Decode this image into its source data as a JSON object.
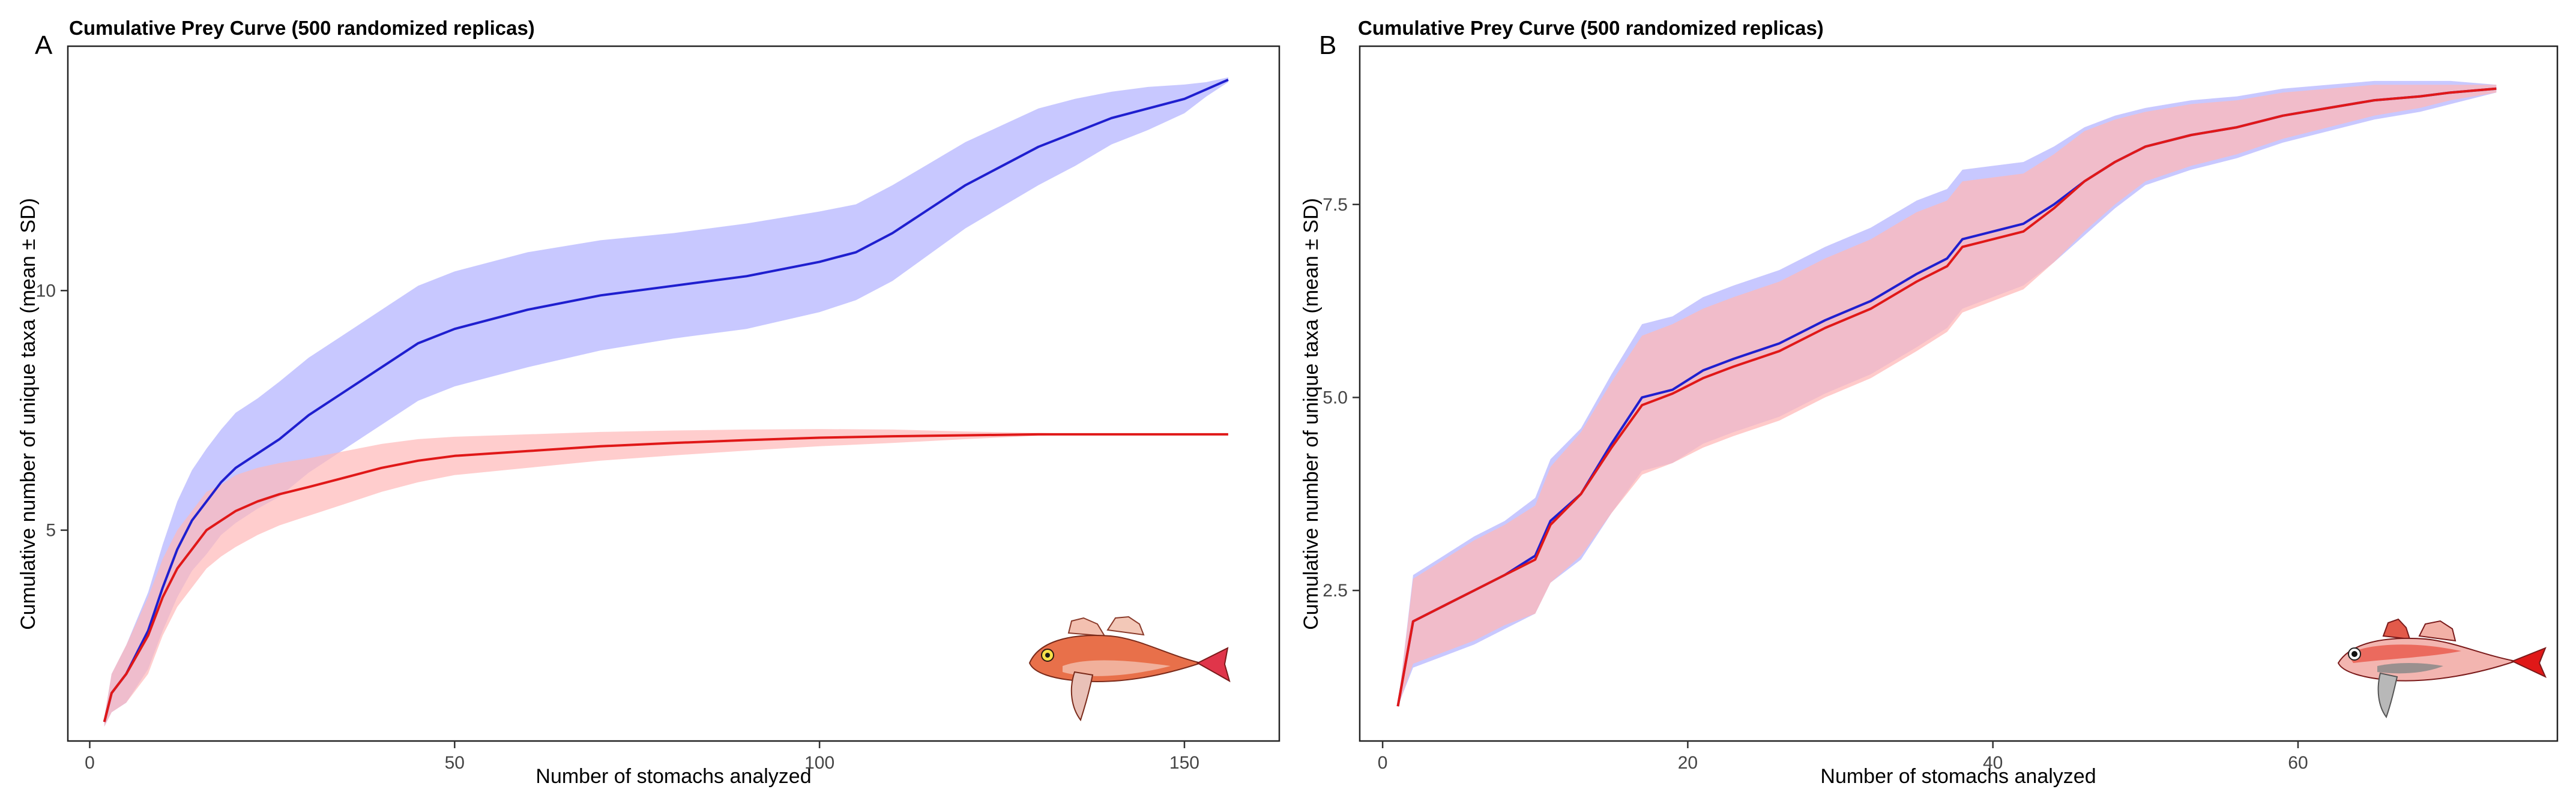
{
  "figure": {
    "panel_letters": [
      "A",
      "B"
    ]
  },
  "chart_data": [
    {
      "type": "area",
      "panel": "A",
      "title": "Cumulative Prey Curve (500 randomized replicas)",
      "xlabel": "Number of stomachs analyzed",
      "ylabel": "Cumulative number of unique taxa (mean ± SD)",
      "xlim": [
        -3,
        163
      ],
      "ylim": [
        0.6,
        15.1
      ],
      "xticks": [
        0,
        50,
        100,
        150
      ],
      "yticks": [
        5,
        10
      ],
      "grid": false,
      "legend": "none",
      "series": [
        {
          "name": "blue",
          "color": "#1f1fcf",
          "band_color": "#b0b0ff",
          "x": [
            2,
            3,
            5,
            8,
            10,
            12,
            14,
            16,
            18,
            20,
            23,
            26,
            30,
            35,
            40,
            45,
            50,
            55,
            60,
            70,
            80,
            90,
            100,
            105,
            110,
            115,
            120,
            125,
            130,
            135,
            140,
            145,
            150,
            153,
            156
          ],
          "mean": [
            1.0,
            1.6,
            2.0,
            2.9,
            3.8,
            4.6,
            5.2,
            5.6,
            6.0,
            6.3,
            6.6,
            6.9,
            7.4,
            7.9,
            8.4,
            8.9,
            9.2,
            9.4,
            9.6,
            9.9,
            10.1,
            10.3,
            10.6,
            10.8,
            11.2,
            11.7,
            12.2,
            12.6,
            13.0,
            13.3,
            13.6,
            13.8,
            14.0,
            14.2,
            14.4
          ],
          "sd": [
            0.1,
            0.4,
            0.6,
            0.8,
            0.9,
            1.0,
            1.05,
            1.1,
            1.1,
            1.15,
            1.15,
            1.2,
            1.2,
            1.2,
            1.2,
            1.2,
            1.2,
            1.2,
            1.2,
            1.15,
            1.1,
            1.1,
            1.05,
            1.0,
            1.0,
            0.95,
            0.9,
            0.85,
            0.8,
            0.7,
            0.55,
            0.45,
            0.3,
            0.15,
            0.05
          ]
        },
        {
          "name": "red",
          "color": "#e01818",
          "band_color": "#ffb8b8",
          "x": [
            2,
            3,
            5,
            8,
            10,
            12,
            14,
            16,
            18,
            20,
            23,
            26,
            30,
            35,
            40,
            45,
            50,
            60,
            70,
            80,
            90,
            100,
            110,
            120,
            130,
            140,
            150,
            156
          ],
          "mean": [
            1.0,
            1.6,
            2.0,
            2.8,
            3.6,
            4.2,
            4.6,
            5.0,
            5.2,
            5.4,
            5.6,
            5.75,
            5.9,
            6.1,
            6.3,
            6.45,
            6.55,
            6.65,
            6.75,
            6.82,
            6.88,
            6.93,
            6.96,
            6.98,
            7.0,
            7.0,
            7.0,
            7.0
          ],
          "sd": [
            0.1,
            0.4,
            0.6,
            0.8,
            0.8,
            0.8,
            0.8,
            0.8,
            0.75,
            0.75,
            0.7,
            0.65,
            0.6,
            0.55,
            0.5,
            0.45,
            0.4,
            0.35,
            0.3,
            0.26,
            0.22,
            0.18,
            0.14,
            0.08,
            0.03,
            0.0,
            0.0,
            0.0
          ]
        }
      ]
    },
    {
      "type": "area",
      "panel": "B",
      "title": "Cumulative Prey Curve (500 randomized replicas)",
      "xlabel": "Number of stomachs analyzed",
      "ylabel": "Cumulative number of unique taxa (mean ± SD)",
      "xlim": [
        -1.5,
        77
      ],
      "ylim": [
        0.55,
        9.55
      ],
      "xticks": [
        0,
        20,
        40,
        60
      ],
      "yticks": [
        2.5,
        5.0,
        7.5
      ],
      "ytick_labels": [
        "2.5",
        "5.0",
        "7.5"
      ],
      "grid": false,
      "legend": "none",
      "series": [
        {
          "name": "blue",
          "color": "#1f1fcf",
          "band_color": "#b0b0ff",
          "x": [
            1,
            2,
            4,
            6,
            8,
            10,
            11,
            13,
            15,
            17,
            19,
            21,
            23,
            26,
            29,
            32,
            35,
            37,
            38,
            40,
            42,
            44,
            46,
            48,
            50,
            53,
            56,
            59,
            62,
            65,
            68,
            70,
            73
          ],
          "mean": [
            1.0,
            2.1,
            2.3,
            2.5,
            2.7,
            2.95,
            3.4,
            3.75,
            4.4,
            5.0,
            5.1,
            5.35,
            5.5,
            5.7,
            6.0,
            6.25,
            6.6,
            6.8,
            7.05,
            7.15,
            7.25,
            7.5,
            7.8,
            8.05,
            8.25,
            8.4,
            8.5,
            8.65,
            8.75,
            8.85,
            8.9,
            8.95,
            9.0
          ],
          "sd": [
            0.0,
            0.6,
            0.65,
            0.7,
            0.7,
            0.75,
            0.8,
            0.85,
            0.9,
            0.95,
            0.95,
            0.95,
            0.95,
            0.95,
            0.95,
            0.95,
            0.95,
            0.9,
            0.9,
            0.85,
            0.8,
            0.75,
            0.7,
            0.6,
            0.5,
            0.45,
            0.4,
            0.35,
            0.3,
            0.25,
            0.2,
            0.15,
            0.05
          ]
        },
        {
          "name": "red",
          "color": "#e01818",
          "band_color": "#ffb8b8",
          "x": [
            1,
            2,
            4,
            6,
            8,
            10,
            11,
            13,
            15,
            17,
            19,
            21,
            23,
            26,
            29,
            32,
            35,
            37,
            38,
            40,
            42,
            44,
            46,
            48,
            50,
            53,
            56,
            59,
            62,
            65,
            68,
            70,
            73
          ],
          "mean": [
            1.0,
            2.1,
            2.3,
            2.5,
            2.7,
            2.9,
            3.35,
            3.75,
            4.35,
            4.9,
            5.05,
            5.25,
            5.4,
            5.6,
            5.9,
            6.15,
            6.5,
            6.7,
            6.95,
            7.05,
            7.15,
            7.45,
            7.8,
            8.05,
            8.25,
            8.4,
            8.5,
            8.65,
            8.75,
            8.85,
            8.9,
            8.95,
            9.0
          ],
          "sd": [
            0.0,
            0.55,
            0.6,
            0.65,
            0.65,
            0.7,
            0.75,
            0.8,
            0.85,
            0.9,
            0.9,
            0.9,
            0.9,
            0.9,
            0.9,
            0.9,
            0.9,
            0.85,
            0.85,
            0.8,
            0.75,
            0.7,
            0.65,
            0.55,
            0.45,
            0.4,
            0.35,
            0.3,
            0.25,
            0.2,
            0.15,
            0.1,
            0.05
          ]
        }
      ]
    }
  ]
}
